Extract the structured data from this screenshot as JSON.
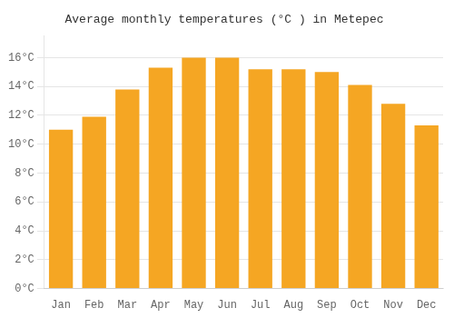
{
  "chart_data": {
    "type": "bar",
    "title": "Average monthly temperatures (°C ) in Metepec",
    "categories": [
      "Jan",
      "Feb",
      "Mar",
      "Apr",
      "May",
      "Jun",
      "Jul",
      "Aug",
      "Sep",
      "Oct",
      "Nov",
      "Dec"
    ],
    "values": [
      11.0,
      11.9,
      13.8,
      15.3,
      16.0,
      16.0,
      15.2,
      15.2,
      15.0,
      14.1,
      12.8,
      11.3
    ],
    "color": "#F5A623",
    "ylim": [
      0,
      17.5
    ],
    "yticks": [
      {
        "value": 0,
        "label": "0°C"
      },
      {
        "value": 2,
        "label": "2°C"
      },
      {
        "value": 4,
        "label": "4°C"
      },
      {
        "value": 6,
        "label": "6°C"
      },
      {
        "value": 8,
        "label": "8°C"
      },
      {
        "value": 10,
        "label": "10°C"
      },
      {
        "value": 12,
        "label": "12°C"
      },
      {
        "value": 14,
        "label": "14°C"
      },
      {
        "value": 16,
        "label": "16°C"
      }
    ],
    "grid": true
  }
}
